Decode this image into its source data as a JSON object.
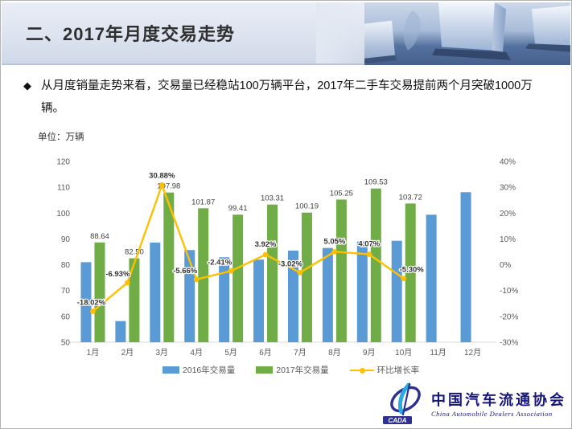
{
  "header": {
    "title": "二、2017年月度交易走势"
  },
  "intro": {
    "marker": "◆",
    "text": "从月度销量走势来看，交易量已经稳站100万辆平台，2017年二手车交易提前两个月突破1000万辆。"
  },
  "unit_label": "单位：万辆",
  "chart_data": {
    "type": "bar+line",
    "categories": [
      "1月",
      "2月",
      "3月",
      "4月",
      "5月",
      "6月",
      "7月",
      "8月",
      "9月",
      "10月",
      "11月",
      "12月"
    ],
    "series": [
      {
        "name": "2016年交易量",
        "type": "bar",
        "axis": "left",
        "color": "#5B9BD5",
        "values": [
          81.0,
          58.2,
          88.6,
          85.7,
          82.9,
          82.0,
          85.5,
          86.5,
          89.0,
          89.3,
          99.4,
          108.1
        ],
        "data_labels": null
      },
      {
        "name": "2017年交易量",
        "type": "bar",
        "axis": "left",
        "color": "#70AD47",
        "values": [
          88.64,
          82.5,
          107.98,
          101.87,
          99.41,
          103.31,
          100.19,
          105.25,
          109.53,
          103.72,
          null,
          null
        ],
        "data_labels": [
          "88.64",
          "82.50",
          "107.98",
          "101.87",
          "99.41",
          "103.31",
          "100.19",
          "105.25",
          "109.53",
          "103.72",
          null,
          null
        ]
      },
      {
        "name": "环比增长率",
        "type": "line",
        "axis": "right",
        "color": "#FFC000",
        "values": [
          -18.02,
          -6.93,
          30.88,
          -5.66,
          -2.41,
          3.92,
          -3.02,
          5.05,
          4.07,
          -5.3,
          null,
          null
        ],
        "data_labels": [
          "-18.02%",
          "-6.93%",
          "30.88%",
          "-5.66%",
          "-2.41%",
          "3.92%",
          "-3.02%",
          "5.05%",
          "4.07%",
          "-5.30%",
          null,
          null
        ]
      }
    ],
    "left_axis": {
      "min": 50,
      "max": 120,
      "step": 10,
      "labels": [
        "120",
        "110",
        "100",
        "90",
        "80",
        "70",
        "60",
        "50"
      ]
    },
    "right_axis": {
      "min": -30,
      "max": 40,
      "step": 10,
      "labels": [
        "40%",
        "30%",
        "20%",
        "10%",
        "0%",
        "-10%",
        "-20%",
        "-30%"
      ]
    },
    "legend": [
      {
        "label": "2016年交易量",
        "swatch": "bar",
        "color": "#5B9BD5"
      },
      {
        "label": "2017年交易量",
        "swatch": "bar",
        "color": "#70AD47"
      },
      {
        "label": "环比增长率",
        "swatch": "line",
        "color": "#FFC000"
      }
    ],
    "gridlines": false,
    "axis_text_color": "#595959",
    "label_text_color": "#3f3f3f",
    "axis_line_color": "#d9d9d9"
  },
  "logo": {
    "acronym": "CADA",
    "name_cn": "中国汽车流通协会",
    "name_en": "China Automobile Dealers Association",
    "color_primary": "#2E3192",
    "color_accent": "#29ABE2",
    "color_text": "#16157a"
  }
}
